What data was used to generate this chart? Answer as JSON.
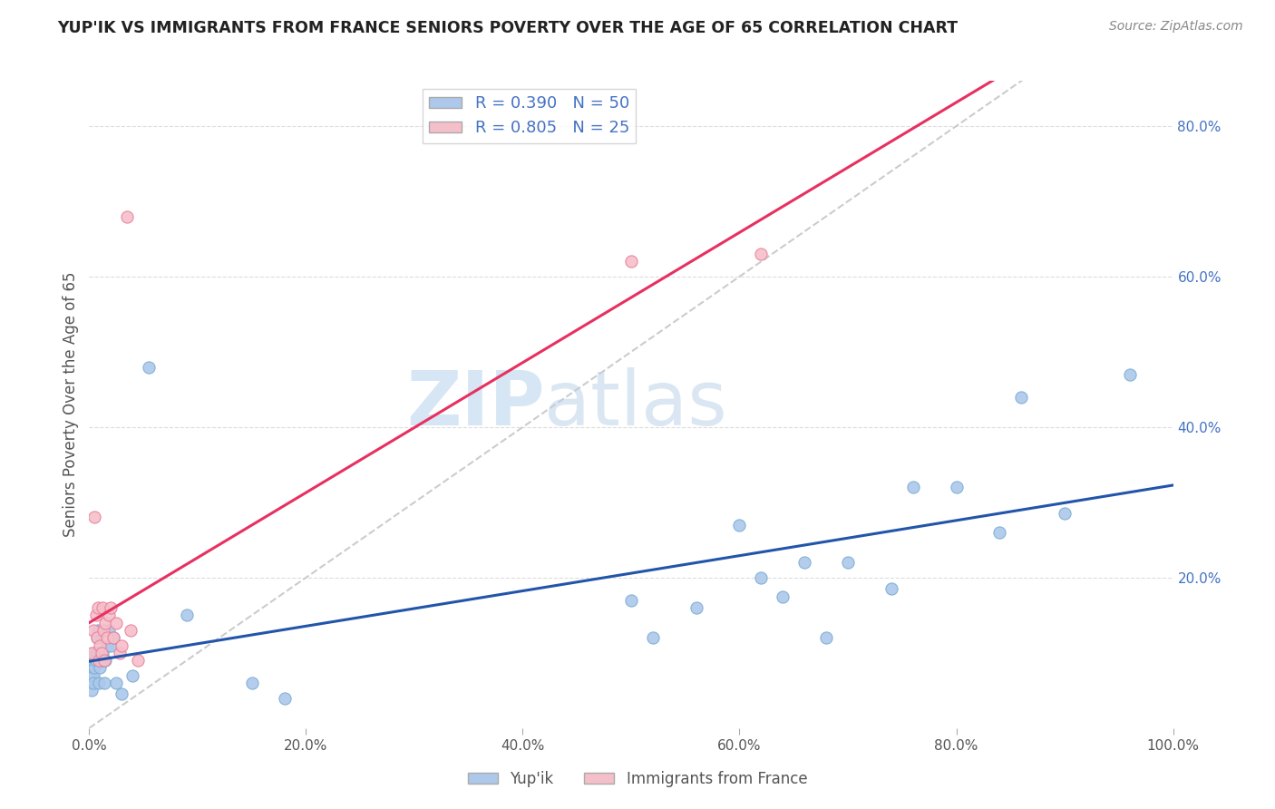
{
  "title": "YUP'IK VS IMMIGRANTS FROM FRANCE SENIORS POVERTY OVER THE AGE OF 65 CORRELATION CHART",
  "source": "Source: ZipAtlas.com",
  "ylabel": "Seniors Poverty Over the Age of 65",
  "xlim": [
    0,
    1.0
  ],
  "ylim": [
    0,
    0.86
  ],
  "xticks": [
    0.0,
    0.2,
    0.4,
    0.6,
    0.8,
    1.0
  ],
  "xticklabels": [
    "0.0%",
    "20.0%",
    "40.0%",
    "60.0%",
    "80.0%",
    "100.0%"
  ],
  "yticks": [
    0.0,
    0.2,
    0.4,
    0.6,
    0.8
  ],
  "yticklabels": [
    "",
    "20.0%",
    "40.0%",
    "60.0%",
    "80.0%"
  ],
  "series1_color": "#adc8ea",
  "series1_edge": "#7aadd4",
  "series2_color": "#f5bfca",
  "series2_edge": "#e8809a",
  "regression1_color": "#2255aa",
  "regression2_color": "#e83060",
  "diagonal_color": "#cccccc",
  "yup_ik_x": [
    0.001,
    0.002,
    0.002,
    0.003,
    0.003,
    0.004,
    0.004,
    0.005,
    0.005,
    0.006,
    0.006,
    0.007,
    0.007,
    0.008,
    0.008,
    0.009,
    0.01,
    0.01,
    0.011,
    0.012,
    0.013,
    0.014,
    0.015,
    0.016,
    0.018,
    0.02,
    0.022,
    0.025,
    0.03,
    0.04,
    0.055,
    0.09,
    0.15,
    0.18,
    0.5,
    0.52,
    0.56,
    0.6,
    0.62,
    0.64,
    0.66,
    0.68,
    0.7,
    0.74,
    0.76,
    0.8,
    0.84,
    0.86,
    0.9,
    0.96
  ],
  "yup_ik_y": [
    0.06,
    0.05,
    0.07,
    0.08,
    0.09,
    0.07,
    0.06,
    0.08,
    0.1,
    0.09,
    0.1,
    0.12,
    0.1,
    0.1,
    0.13,
    0.06,
    0.08,
    0.1,
    0.09,
    0.1,
    0.09,
    0.06,
    0.09,
    0.11,
    0.13,
    0.11,
    0.12,
    0.06,
    0.045,
    0.07,
    0.48,
    0.15,
    0.06,
    0.04,
    0.17,
    0.12,
    0.16,
    0.27,
    0.2,
    0.175,
    0.22,
    0.12,
    0.22,
    0.185,
    0.32,
    0.32,
    0.26,
    0.44,
    0.285,
    0.47
  ],
  "france_x": [
    0.002,
    0.004,
    0.005,
    0.006,
    0.007,
    0.008,
    0.009,
    0.01,
    0.011,
    0.012,
    0.013,
    0.014,
    0.015,
    0.016,
    0.018,
    0.02,
    0.022,
    0.025,
    0.028,
    0.03,
    0.035,
    0.038,
    0.045,
    0.5,
    0.62
  ],
  "france_y": [
    0.1,
    0.13,
    0.28,
    0.15,
    0.12,
    0.16,
    0.09,
    0.11,
    0.1,
    0.16,
    0.13,
    0.09,
    0.14,
    0.12,
    0.15,
    0.16,
    0.12,
    0.14,
    0.1,
    0.11,
    0.68,
    0.13,
    0.09,
    0.62,
    0.63
  ],
  "watermark_zip": "ZIP",
  "watermark_atlas": "atlas",
  "background_color": "#ffffff",
  "grid_color": "#dddddd",
  "tick_color": "#4472c4",
  "title_color": "#222222",
  "source_color": "#888888",
  "ylabel_color": "#555555"
}
